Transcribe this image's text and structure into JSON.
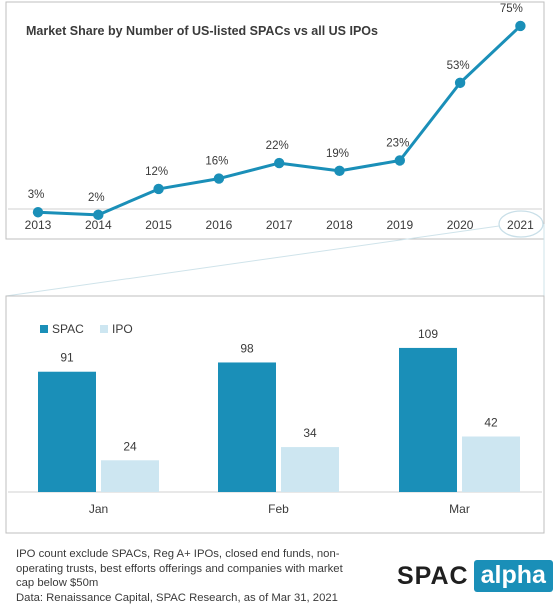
{
  "chart_data": [
    {
      "type": "line",
      "title": "Market Share by Number of US-listed SPACs vs all US IPOs",
      "x": [
        "2013",
        "2014",
        "2015",
        "2016",
        "2017",
        "2018",
        "2019",
        "2020",
        "2021"
      ],
      "values": [
        3,
        2,
        12,
        16,
        22,
        19,
        23,
        53,
        75
      ],
      "data_labels": [
        "3%",
        "2%",
        "12%",
        "16%",
        "22%",
        "19%",
        "23%",
        "53%",
        "75%"
      ],
      "unit": "%",
      "ylim": [
        0,
        80
      ],
      "grid": false,
      "highlight_category": "2021",
      "colors": {
        "line": "#1a8fb8",
        "marker": "#1a8fb8"
      }
    },
    {
      "type": "bar",
      "categories": [
        "Jan",
        "Feb",
        "Mar"
      ],
      "series": [
        {
          "name": "SPAC",
          "values": [
            91,
            98,
            109
          ],
          "color": "#1a8fb8"
        },
        {
          "name": "IPO",
          "values": [
            24,
            34,
            42
          ],
          "color": "#cde6f1"
        }
      ],
      "ylim": [
        0,
        115
      ],
      "legend_position": "top-left",
      "grid": false
    }
  ],
  "footnote": {
    "lines": [
      "IPO count exclude SPACs, Reg A+ IPOs, closed end funds, non-",
      "operating trusts, best efforts offerings and companies with market",
      "cap below $50m",
      "Data:   Renaissance Capital, SPAC Research, as of Mar 31, 2021"
    ]
  },
  "logo": {
    "word": "SPAC",
    "badge": "alpha",
    "color": "#1a8fb8"
  }
}
